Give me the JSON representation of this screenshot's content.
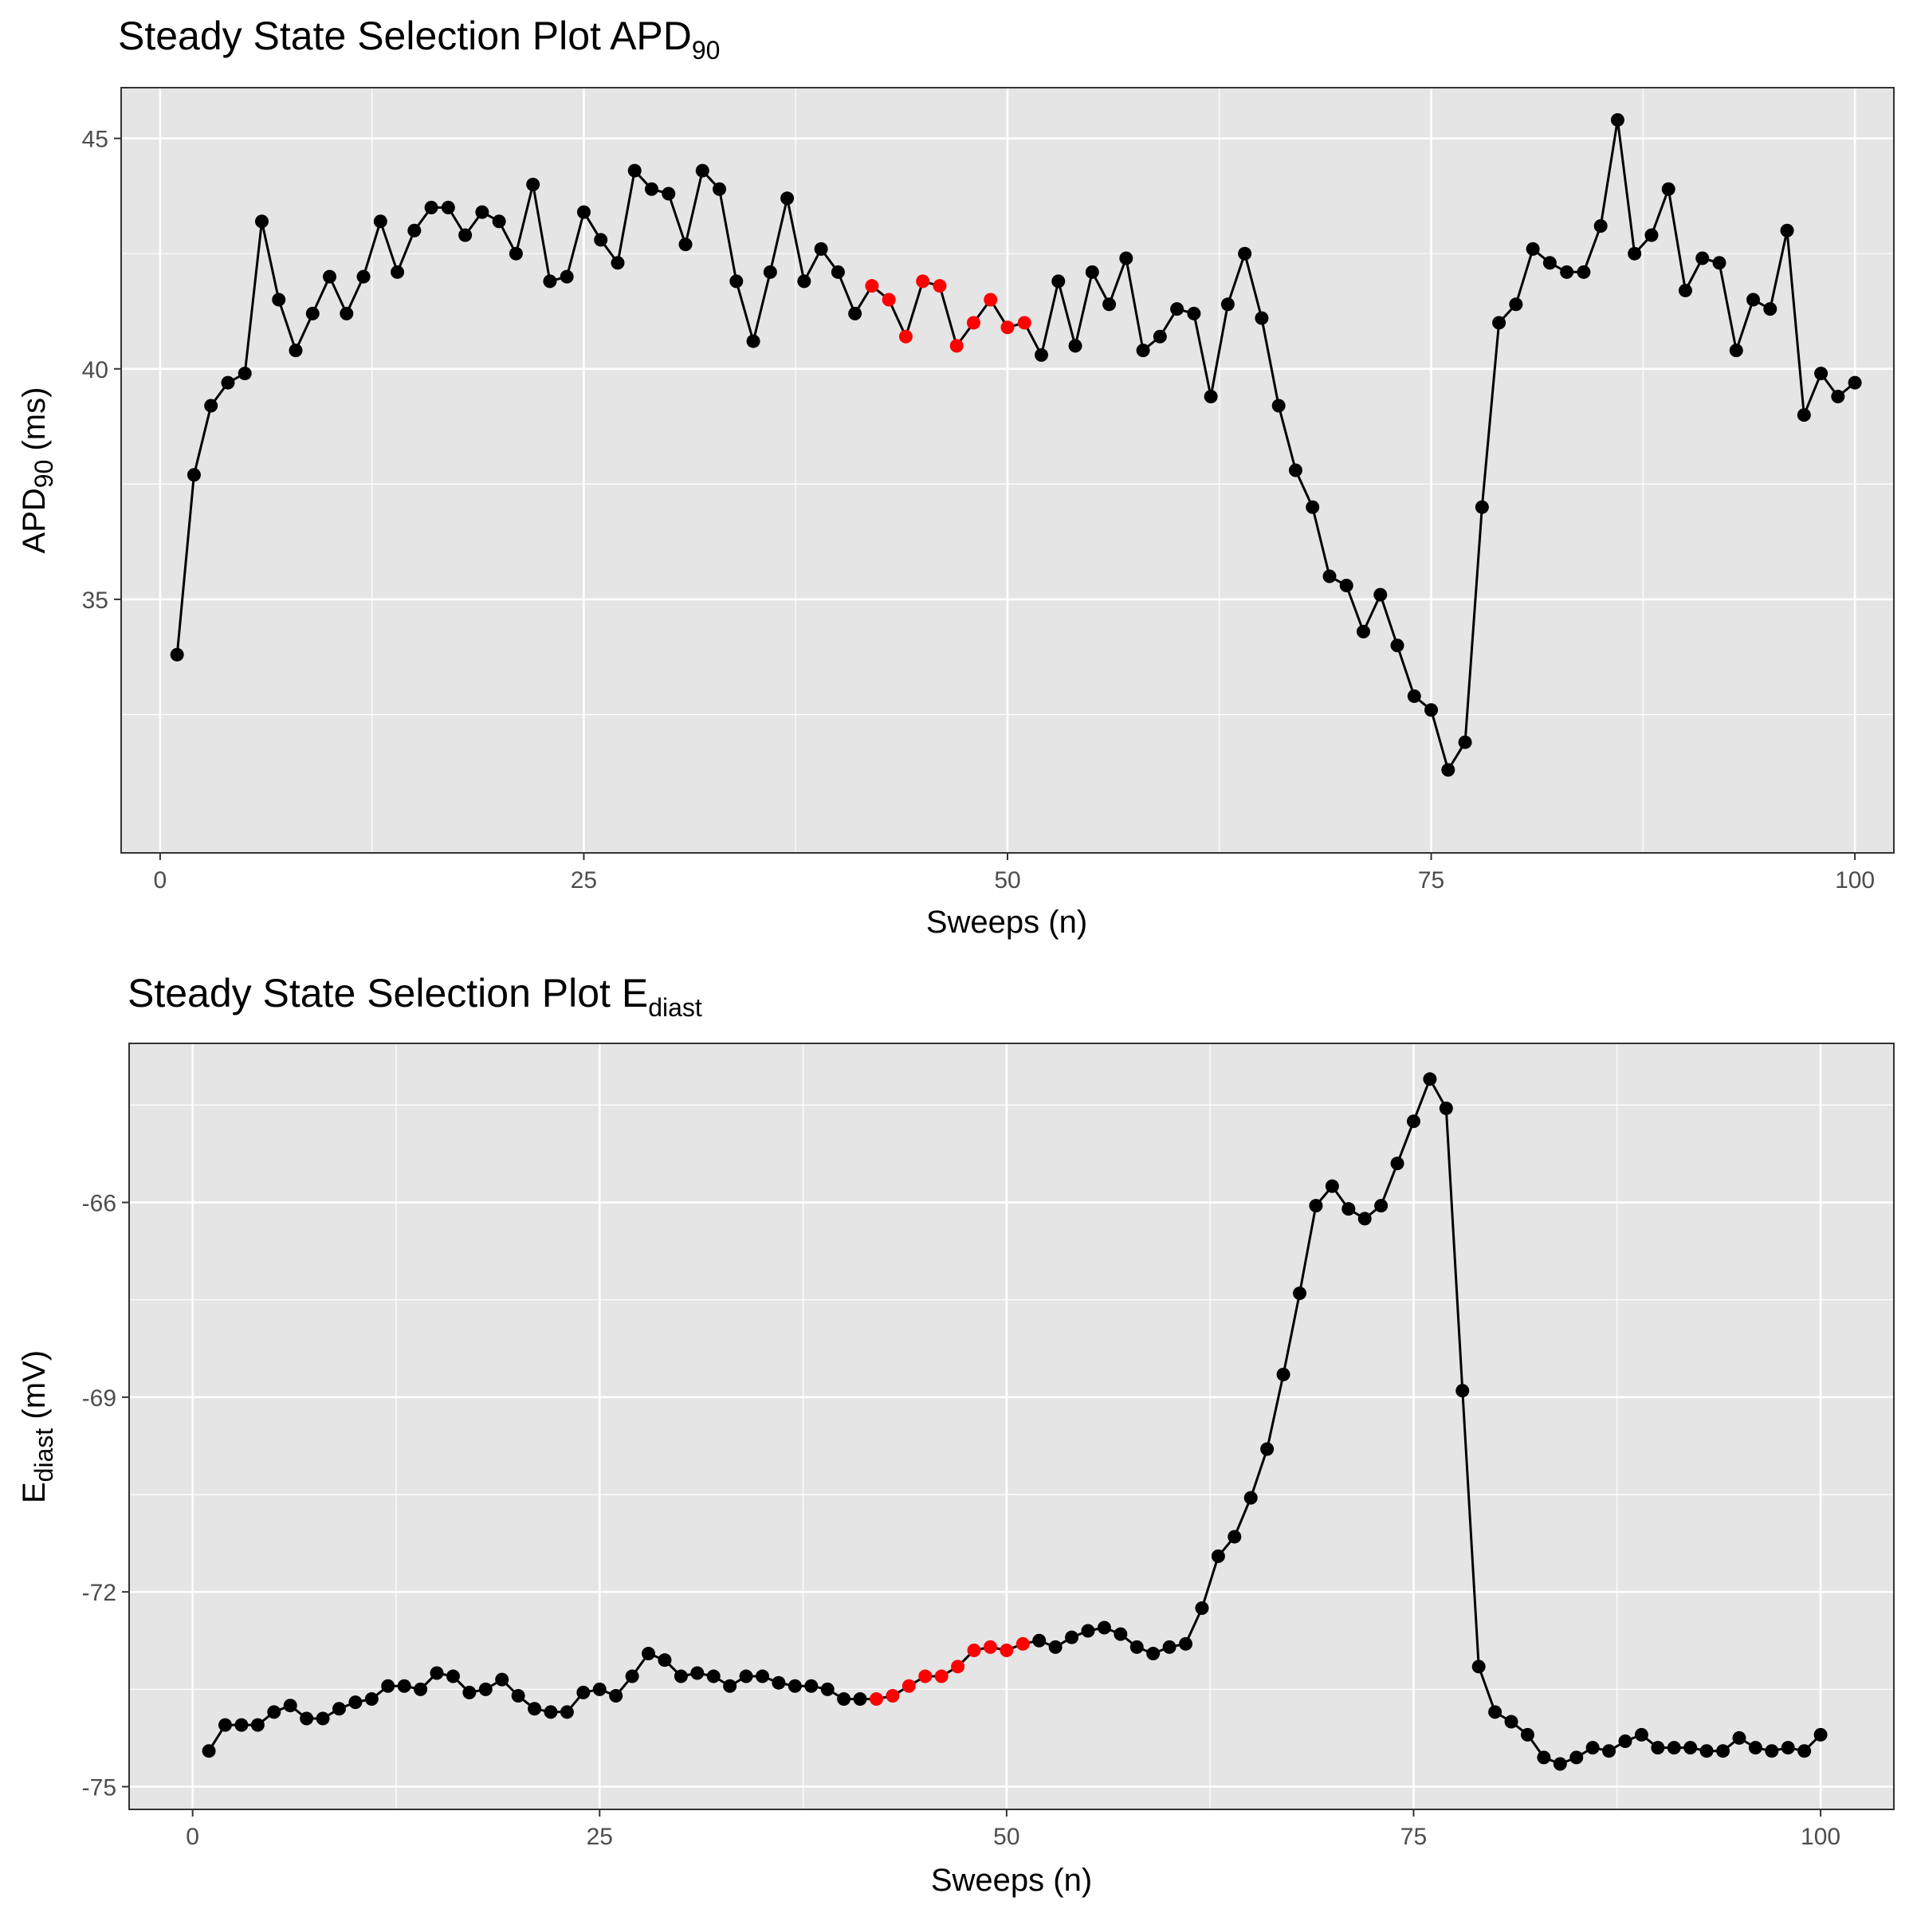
{
  "chart_data": [
    {
      "type": "line",
      "title": "Steady State Selection Plot APD",
      "title_subscript": "90",
      "xlabel": "Sweeps (n)",
      "ylabel": "APD",
      "ylabel_subscript": "90",
      "ylabel_suffix": " (ms)",
      "xlim": [
        -2.3,
        102.3
      ],
      "ylim": [
        29.5,
        46.1
      ],
      "x_ticks": [
        0,
        25,
        50,
        75,
        100
      ],
      "x_tick_labels": [
        "0",
        "25",
        "50",
        "75",
        "100"
      ],
      "y_ticks": [
        35,
        40,
        45
      ],
      "y_tick_labels": [
        "35",
        "40",
        "45"
      ],
      "grid": true,
      "colors": {
        "line": "#000000",
        "point": "#000000",
        "highlight": "#ff0000",
        "panel": "#e5e5e5",
        "grid": "#ffffff"
      },
      "highlight_range": [
        42,
        51
      ],
      "x": [
        1,
        2,
        3,
        4,
        5,
        6,
        7,
        8,
        9,
        10,
        11,
        12,
        13,
        14,
        15,
        16,
        17,
        18,
        19,
        20,
        21,
        22,
        23,
        24,
        25,
        26,
        27,
        28,
        29,
        30,
        31,
        32,
        33,
        34,
        35,
        36,
        37,
        38,
        39,
        40,
        41,
        42,
        43,
        44,
        45,
        46,
        47,
        48,
        49,
        50,
        51,
        52,
        53,
        54,
        55,
        56,
        57,
        58,
        59,
        60,
        61,
        62,
        63,
        64,
        65,
        66,
        67,
        68,
        69,
        70,
        71,
        72,
        73,
        74,
        75,
        76,
        77,
        78,
        79,
        80,
        81,
        82,
        83,
        84,
        85,
        86,
        87,
        88,
        89,
        90,
        91,
        92,
        93,
        94,
        95,
        96,
        97,
        98,
        99,
        100
      ],
      "y": [
        33.8,
        37.7,
        39.2,
        39.7,
        39.9,
        43.2,
        41.5,
        40.4,
        41.2,
        42.0,
        41.2,
        42.0,
        43.2,
        42.1,
        43.0,
        43.5,
        43.5,
        42.9,
        43.4,
        43.2,
        42.5,
        44.0,
        41.9,
        42.0,
        43.4,
        42.8,
        42.3,
        44.3,
        43.9,
        43.8,
        42.7,
        44.3,
        43.9,
        41.9,
        40.6,
        42.1,
        43.7,
        41.9,
        42.6,
        42.1,
        41.2,
        41.8,
        41.5,
        40.7,
        41.9,
        41.8,
        40.5,
        41.0,
        41.5,
        40.9,
        41.0,
        40.3,
        41.9,
        40.5,
        42.1,
        41.4,
        42.4,
        40.4,
        40.7,
        41.3,
        41.2,
        39.4,
        41.4,
        42.5,
        41.1,
        39.2,
        37.8,
        37.0,
        35.5,
        35.3,
        34.3,
        35.1,
        34.0,
        32.9,
        32.6,
        31.3,
        31.9,
        37.0,
        41.0,
        41.4,
        42.6,
        42.3,
        42.1,
        42.1,
        43.1,
        45.4,
        42.5,
        42.9,
        43.9,
        41.7,
        42.4,
        42.3,
        40.4,
        41.5,
        41.3,
        43.0,
        39.0,
        39.9,
        39.4,
        39.7
      ]
    },
    {
      "type": "line",
      "title": "Steady State Selection Plot E",
      "title_subscript": "diast",
      "xlabel": "Sweeps (n)",
      "ylabel": "E",
      "ylabel_subscript": "diast",
      "ylabel_suffix": " (mV)",
      "xlim": [
        -3.9,
        104.5
      ],
      "ylim": [
        -75.35,
        -63.55
      ],
      "x_ticks": [
        0,
        25,
        50,
        75,
        100
      ],
      "x_tick_labels": [
        "0",
        "25",
        "50",
        "75",
        "100"
      ],
      "y_ticks": [
        -75,
        -72,
        -69,
        -66
      ],
      "y_tick_labels": [
        "-75",
        "-72",
        "-69",
        "-66"
      ],
      "grid": true,
      "colors": {
        "line": "#000000",
        "point": "#000000",
        "highlight": "#ff0000",
        "panel": "#e5e5e5",
        "grid": "#ffffff"
      },
      "highlight_range": [
        42,
        51
      ],
      "x": [
        1,
        2,
        3,
        4,
        5,
        6,
        7,
        8,
        9,
        10,
        11,
        12,
        13,
        14,
        15,
        16,
        17,
        18,
        19,
        20,
        21,
        22,
        23,
        24,
        25,
        26,
        27,
        28,
        29,
        30,
        31,
        32,
        33,
        34,
        35,
        36,
        37,
        38,
        39,
        40,
        41,
        42,
        43,
        44,
        45,
        46,
        47,
        48,
        49,
        50,
        51,
        52,
        53,
        54,
        55,
        56,
        57,
        58,
        59,
        60,
        61,
        62,
        63,
        64,
        65,
        66,
        67,
        68,
        69,
        70,
        71,
        72,
        73,
        74,
        75,
        76,
        77,
        78,
        79,
        80,
        81,
        82,
        83,
        84,
        85,
        86,
        87,
        88,
        89,
        90,
        91,
        92,
        93,
        94,
        95,
        96,
        97,
        98,
        99,
        100
      ],
      "y": [
        -74.45,
        -74.05,
        -74.05,
        -74.05,
        -73.85,
        -73.75,
        -73.95,
        -73.95,
        -73.8,
        -73.7,
        -73.65,
        -73.45,
        -73.45,
        -73.5,
        -73.25,
        -73.3,
        -73.55,
        -73.5,
        -73.35,
        -73.6,
        -73.8,
        -73.85,
        -73.85,
        -73.55,
        -73.5,
        -73.6,
        -73.3,
        -72.95,
        -73.05,
        -73.3,
        -73.25,
        -73.3,
        -73.45,
        -73.3,
        -73.3,
        -73.4,
        -73.45,
        -73.45,
        -73.5,
        -73.65,
        -73.65,
        -73.65,
        -73.6,
        -73.45,
        -73.3,
        -73.3,
        -73.15,
        -72.9,
        -72.85,
        -72.9,
        -72.8,
        -72.75,
        -72.85,
        -72.7,
        -72.6,
        -72.55,
        -72.65,
        -72.85,
        -72.95,
        -72.85,
        -72.8,
        -72.25,
        -71.45,
        -71.15,
        -70.55,
        -69.8,
        -68.65,
        -67.4,
        -66.05,
        -65.75,
        -66.1,
        -66.25,
        -66.05,
        -65.4,
        -64.75,
        -64.1,
        -64.55,
        -68.9,
        -73.15,
        -73.85,
        -74.0,
        -74.2,
        -74.55,
        -74.65,
        -74.55,
        -74.4,
        -74.45,
        -74.3,
        -74.2,
        -74.4,
        -74.4,
        -74.4,
        -74.45,
        -74.45,
        -74.25,
        -74.4,
        -74.45,
        -74.4,
        -74.45,
        -74.2
      ]
    }
  ]
}
